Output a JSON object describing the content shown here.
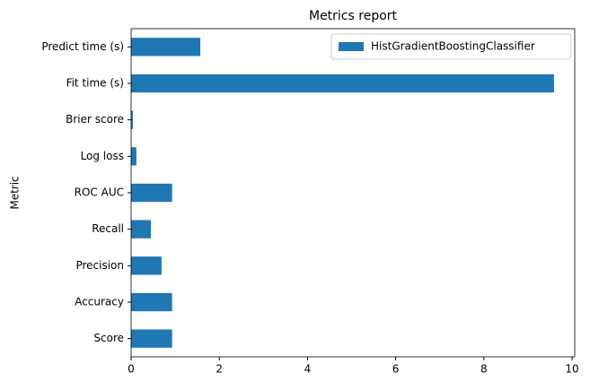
{
  "chart_data": {
    "type": "barh",
    "title": "Metrics report",
    "ylabel": "Metric",
    "categories": [
      "Score",
      "Accuracy",
      "Precision",
      "Recall",
      "ROC AUC",
      "Log loss",
      "Brier score",
      "Fit time (s)",
      "Predict time (s)"
    ],
    "series": [
      {
        "name": "HistGradientBoostingClassifier",
        "color": "#1f77b4",
        "values": [
          0.93,
          0.93,
          0.69,
          0.45,
          0.93,
          0.12,
          0.04,
          9.59,
          1.57
        ]
      }
    ],
    "xlim": [
      0,
      10.06
    ],
    "xticks": [
      0,
      2,
      4,
      6,
      8,
      10
    ],
    "legend": "upper right"
  }
}
